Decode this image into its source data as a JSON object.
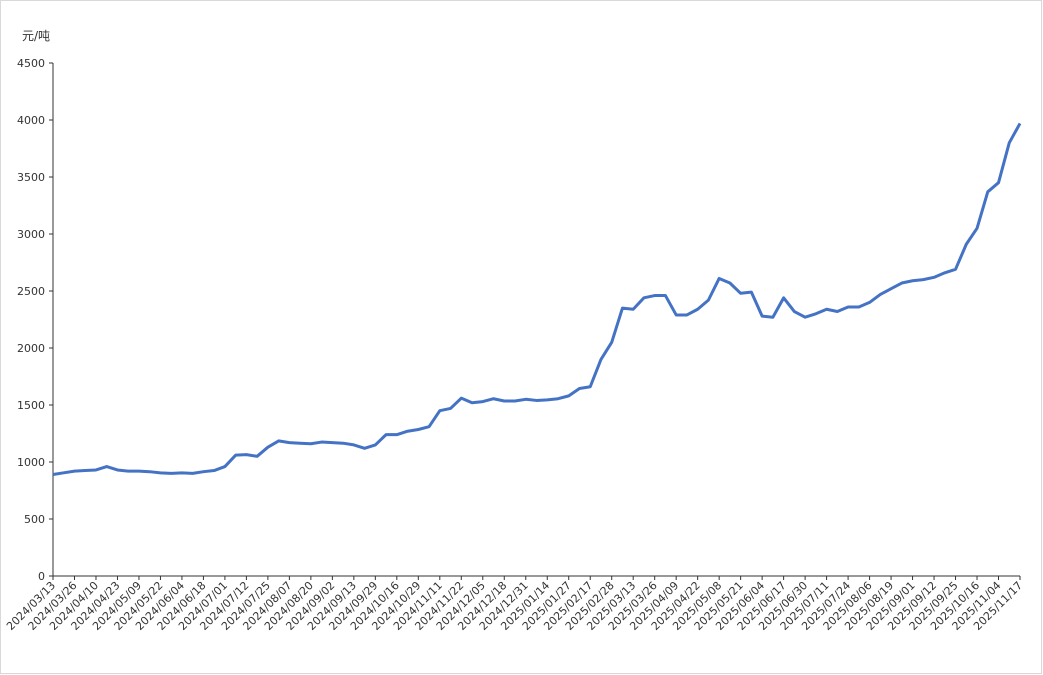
{
  "chart_data": {
    "type": "line",
    "y_label": "元/吨",
    "categories": [
      "2024/03/13",
      null,
      "2024/03/26",
      null,
      "2024/04/10",
      null,
      "2024/04/23",
      null,
      "2024/05/09",
      null,
      "2024/05/22",
      null,
      "2024/06/04",
      null,
      "2024/06/18",
      null,
      "2024/07/01",
      null,
      "2024/07/12",
      null,
      "2024/07/25",
      null,
      "2024/08/07",
      null,
      "2024/08/20",
      null,
      "2024/09/02",
      null,
      "2024/09/13",
      null,
      "2024/09/29",
      null,
      "2024/10/16",
      null,
      "2024/10/29",
      null,
      "2024/11/11",
      null,
      "2024/11/22",
      null,
      "2024/12/05",
      null,
      "2024/12/18",
      null,
      "2024/12/31",
      null,
      "2025/01/14",
      null,
      "2025/01/27",
      null,
      "2025/02/17",
      null,
      "2025/02/28",
      null,
      "2025/03/13",
      null,
      "2025/03/26",
      null,
      "2025/04/09",
      null,
      "2025/04/22",
      null,
      "2025/05/08",
      null,
      "2025/05/21",
      null,
      "2025/06/04",
      null,
      "2025/06/17",
      null,
      "2025/06/30",
      null,
      "2025/07/11",
      null,
      "2025/07/24",
      null,
      "2025/08/06",
      null,
      "2025/08/19",
      null,
      "2025/09/01",
      null,
      "2025/09/12",
      null,
      "2025/09/25",
      null,
      "2025/10/16",
      null,
      "2025/11/04",
      null,
      "2025/11/17"
    ],
    "series": [
      {
        "color": "#4472c4",
        "values": [
          890,
          905,
          920,
          925,
          930,
          960,
          930,
          920,
          920,
          915,
          905,
          900,
          905,
          900,
          915,
          925,
          960,
          1060,
          1065,
          1050,
          1130,
          1185,
          1170,
          1165,
          1160,
          1175,
          1170,
          1165,
          1150,
          1120,
          1150,
          1240,
          1240,
          1270,
          1285,
          1310,
          1450,
          1470,
          1560,
          1520,
          1530,
          1555,
          1535,
          1535,
          1550,
          1540,
          1545,
          1555,
          1580,
          1645,
          1660,
          1900,
          2050,
          2350,
          2340,
          2440,
          2460,
          2460,
          2290,
          2290,
          2340,
          2420,
          2610,
          2570,
          2480,
          2490,
          2280,
          2270,
          2440,
          2320,
          2270,
          2300,
          2340,
          2320,
          2360,
          2360,
          2400,
          2470,
          2520,
          2570,
          2590,
          2600,
          2620,
          2660,
          2690,
          2910,
          3050,
          3370,
          3450,
          3800,
          3970
        ]
      }
    ],
    "ylim": [
      0,
      4500
    ],
    "yticks": [
      0,
      500,
      1000,
      1500,
      2000,
      2500,
      3000,
      3500,
      4000,
      4500
    ]
  }
}
